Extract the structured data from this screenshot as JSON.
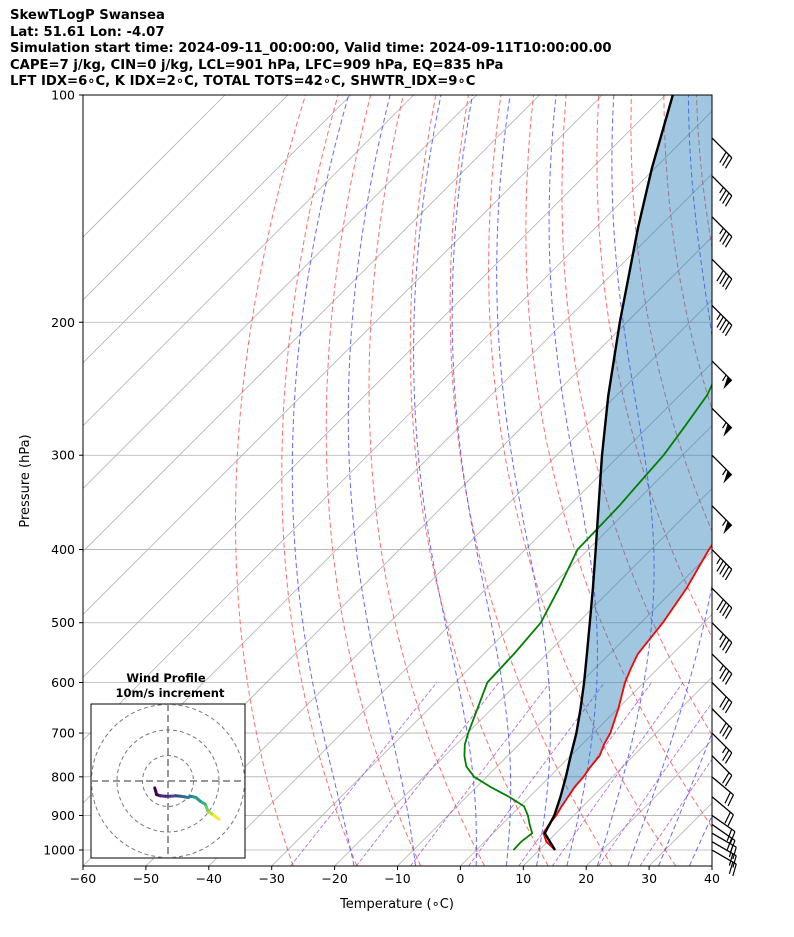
{
  "header": {
    "line1": "SkewTLogP Swansea",
    "line2": "Lat: 51.61   Lon: -4.07",
    "line3": "Simulation start time: 2024-09-11_00:00:00, Valid time: 2024-09-11T10:00:00.00",
    "line4": "CAPE=7 j/kg, CIN=0 j/kg, LCL=901 hPa, LFC=909 hPa, EQ=835 hPa",
    "line5": "LFT IDX=6∘C, K IDX=2∘C, TOTAL TOTS=42∘C, SHWTR_IDX=9∘C"
  },
  "chart_data": [
    {
      "type": "line",
      "name": "skew-t-log-p",
      "xlabel": "Temperature (∘C)",
      "ylabel": "Pressure (hPa)",
      "xlim": [
        -60,
        40
      ],
      "ylim": [
        1050,
        100
      ],
      "y_scale": "log",
      "skew": "45-degree",
      "x_ticks": [
        -60,
        -50,
        -40,
        -30,
        -20,
        -10,
        0,
        10,
        20,
        30,
        40
      ],
      "x_tick_labels": [
        "−60",
        "−50",
        "−40",
        "−30",
        "−20",
        "−10",
        "0",
        "10",
        "20",
        "30",
        "40"
      ],
      "y_ticks": [
        1000,
        900,
        800,
        700,
        600,
        500,
        400,
        300,
        200,
        100
      ],
      "y_tick_labels": [
        "1000",
        "900",
        "800",
        "700",
        "600",
        "500",
        "400",
        "300",
        "200",
        "100"
      ],
      "grid": true,
      "shaded_area": "CAPE between temperature and parcel path",
      "series": [
        {
          "key": "temperature",
          "color": "#ff0000",
          "points": [
            [
              1000,
              12.5
            ],
            [
              975,
              9.8
            ],
            [
              950,
              8.0
            ],
            [
              925,
              7.5
            ],
            [
              900,
              7.2
            ],
            [
              875,
              6.6
            ],
            [
              850,
              6.1
            ],
            [
              825,
              5.6
            ],
            [
              800,
              5.4
            ],
            [
              775,
              4.9
            ],
            [
              750,
              4.6
            ],
            [
              725,
              3.5
            ],
            [
              700,
              2.7
            ],
            [
              650,
              0.1
            ],
            [
              600,
              -3.0
            ],
            [
              575,
              -4.3
            ],
            [
              550,
              -5.5
            ],
            [
              500,
              -6.5
            ],
            [
              450,
              -8.2
            ],
            [
              400,
              -10.8
            ],
            [
              350,
              -13.0
            ],
            [
              325,
              -15.3
            ],
            [
              300,
              -16.9
            ],
            [
              275,
              -17.5
            ],
            [
              250,
              -17.7
            ],
            [
              225,
              -17.8
            ],
            [
              200,
              -17.0
            ],
            [
              180,
              -16.3
            ],
            [
              160,
              -16.8
            ],
            [
              140,
              -15.8
            ],
            [
              125,
              -13.7
            ],
            [
              110,
              -10.5
            ],
            [
              100,
              -7.8
            ]
          ]
        },
        {
          "key": "dewpoint",
          "color": "#008000",
          "points": [
            [
              1000,
              5.9
            ],
            [
              975,
              5.8
            ],
            [
              950,
              6.2
            ],
            [
              925,
              4.4
            ],
            [
              900,
              2.7
            ],
            [
              875,
              0.6
            ],
            [
              850,
              -3.3
            ],
            [
              825,
              -7.8
            ],
            [
              800,
              -12.0
            ],
            [
              775,
              -14.9
            ],
            [
              750,
              -16.9
            ],
            [
              725,
              -18.6
            ],
            [
              700,
              -19.9
            ],
            [
              650,
              -22.3
            ],
            [
              600,
              -24.9
            ],
            [
              550,
              -25.2
            ],
            [
              500,
              -25.9
            ],
            [
              450,
              -28.5
            ],
            [
              400,
              -31.7
            ],
            [
              350,
              -32.0
            ],
            [
              325,
              -32.5
            ],
            [
              300,
              -33.0
            ],
            [
              275,
              -34.2
            ],
            [
              250,
              -35.6
            ],
            [
              225,
              -38.5
            ],
            [
              210,
              -40.5
            ],
            [
              200,
              -43.3
            ],
            [
              190,
              -46.0
            ],
            [
              170,
              -49.2
            ],
            [
              140,
              -48.8
            ],
            [
              120,
              -46.4
            ],
            [
              100,
              -43.5
            ]
          ]
        },
        {
          "key": "parcel",
          "color": "#000000",
          "points": [
            [
              1000,
              12.5
            ],
            [
              950,
              8.2
            ],
            [
              900,
              6.9
            ],
            [
              850,
              4.9
            ],
            [
              800,
              2.6
            ],
            [
              750,
              0.0
            ],
            [
              700,
              -2.7
            ],
            [
              650,
              -5.9
            ],
            [
              600,
              -9.5
            ],
            [
              550,
              -13.6
            ],
            [
              500,
              -18.1
            ],
            [
              450,
              -23.1
            ],
            [
              400,
              -28.8
            ],
            [
              350,
              -35.3
            ],
            [
              300,
              -42.8
            ],
            [
              250,
              -51.3
            ],
            [
              200,
              -61.1
            ],
            [
              150,
              -73.2
            ],
            [
              125,
              -80.5
            ],
            [
              100,
              -88.8
            ]
          ]
        }
      ],
      "wind_barbs": [
        {
          "p": 1000,
          "speed": 20,
          "dir": 300
        },
        {
          "p": 975,
          "speed": 20,
          "dir": 300
        },
        {
          "p": 950,
          "speed": 20,
          "dir": 300
        },
        {
          "p": 925,
          "speed": 20,
          "dir": 305
        },
        {
          "p": 900,
          "speed": 20,
          "dir": 305
        },
        {
          "p": 850,
          "speed": 20,
          "dir": 310
        },
        {
          "p": 800,
          "speed": 20,
          "dir": 310
        },
        {
          "p": 750,
          "speed": 20,
          "dir": 315
        },
        {
          "p": 700,
          "speed": 25,
          "dir": 315
        },
        {
          "p": 650,
          "speed": 30,
          "dir": 315
        },
        {
          "p": 600,
          "speed": 30,
          "dir": 315
        },
        {
          "p": 550,
          "speed": 35,
          "dir": 315
        },
        {
          "p": 500,
          "speed": 35,
          "dir": 315
        },
        {
          "p": 450,
          "speed": 40,
          "dir": 315
        },
        {
          "p": 400,
          "speed": 45,
          "dir": 315
        },
        {
          "p": 350,
          "speed": 55,
          "dir": 315
        },
        {
          "p": 300,
          "speed": 55,
          "dir": 315
        },
        {
          "p": 260,
          "speed": 55,
          "dir": 315
        },
        {
          "p": 225,
          "speed": 55,
          "dir": 315
        },
        {
          "p": 190,
          "speed": 45,
          "dir": 315
        },
        {
          "p": 165,
          "speed": 40,
          "dir": 315
        },
        {
          "p": 145,
          "speed": 35,
          "dir": 315
        },
        {
          "p": 128,
          "speed": 35,
          "dir": 315
        },
        {
          "p": 114,
          "speed": 30,
          "dir": 315
        }
      ]
    },
    {
      "type": "line",
      "name": "hodograph",
      "title": "Wind Profile",
      "subtitle": "10m/s increment",
      "rings": [
        10,
        20,
        30
      ],
      "series": [
        {
          "key": "hodograph",
          "colormap": "viridis",
          "points": [
            [
              11.0,
              -6.5
            ],
            [
              12.5,
              -7.8
            ],
            [
              13.5,
              -8.5
            ],
            [
              14.5,
              -9.0
            ],
            [
              15.0,
              -10.0
            ],
            [
              15.5,
              -11.5
            ],
            [
              16.2,
              -12.3
            ],
            [
              17.0,
              -12.8
            ],
            [
              18.0,
              -13.5
            ],
            [
              19.0,
              -14.2
            ],
            [
              20.0,
              -15.0
            ]
          ],
          "low_level_points": [
            [
              -5.2,
              -2.7
            ],
            [
              -4.8,
              -4.0
            ],
            [
              -4.5,
              -5.3
            ],
            [
              -3.0,
              -5.8
            ],
            [
              -1.0,
              -6.0
            ],
            [
              1.0,
              -6.0
            ],
            [
              3.0,
              -5.8
            ],
            [
              5.0,
              -6.0
            ],
            [
              6.5,
              -6.2
            ],
            [
              7.8,
              -6.5
            ],
            [
              9.0,
              -6.0
            ],
            [
              10.0,
              -6.2
            ]
          ]
        }
      ]
    }
  ]
}
